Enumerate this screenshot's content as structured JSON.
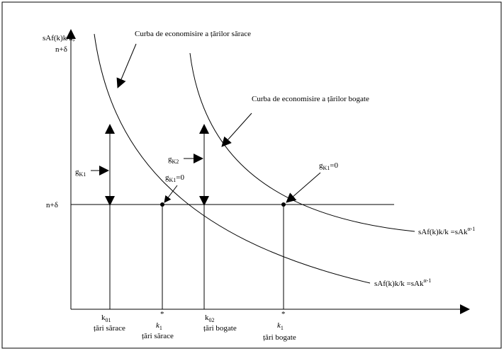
{
  "axes": {
    "y_label_line1": "sAf(k)k/k,",
    "y_label_line2": "n+δ",
    "n_delta": "n+δ"
  },
  "curves": {
    "poor_title": "Curba de economisire a țărilor sărace",
    "rich_title": "Curba de economisire a țărilor bogate",
    "poor_eq": "sAf(k)k/k =sAk",
    "poor_eq_sup": "α-1",
    "rich_eq": "sAf(k)k/k =sAk",
    "rich_eq_sup": "α-1"
  },
  "growth": {
    "g1": {
      "base": "g",
      "sub": "K1"
    },
    "g2": {
      "base": "g",
      "sub": "K2"
    },
    "g1_zero": {
      "base": "g",
      "sub": "K1",
      "suffix": "=0"
    },
    "g2_zero": {
      "base": "g",
      "sub": "K1",
      "suffix": "=0"
    }
  },
  "x_labels": [
    {
      "k": "k",
      "sub": "01",
      "group": "țări sărace"
    },
    {
      "k": "k",
      "sub": "1",
      "star": "*",
      "group": "țări sărace"
    },
    {
      "k": "k",
      "sub": "02",
      "group": "țări bogate"
    },
    {
      "k": "k",
      "sub": "1",
      "star": "*",
      "group": "țări bogate"
    }
  ]
}
